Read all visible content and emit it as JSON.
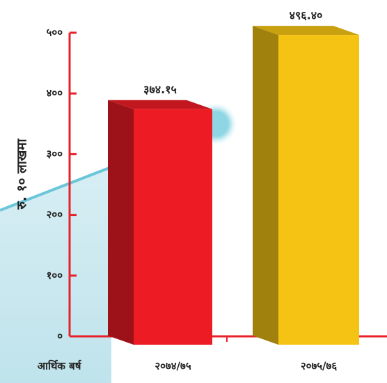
{
  "chart_data": {
    "type": "bar3d",
    "y_axis_label": "रु. १० लाखमा",
    "x_axis_label": "आर्थिक बर्ष",
    "categories": [
      "२०७४/७५",
      "२०७५/७६"
    ],
    "values": [
      374.15,
      496.4
    ],
    "value_labels": [
      "३७४.१५",
      "४९६.४०"
    ],
    "colors": [
      "#ed1c24",
      "#f4c313"
    ],
    "ylim": [
      0,
      500
    ],
    "yticks": [
      {
        "value": 0,
        "label": "०"
      },
      {
        "value": 100,
        "label": "१००"
      },
      {
        "value": 200,
        "label": "२००"
      },
      {
        "value": 300,
        "label": "३००"
      },
      {
        "value": 400,
        "label": "४००"
      },
      {
        "value": 500,
        "label": "५००"
      }
    ]
  }
}
